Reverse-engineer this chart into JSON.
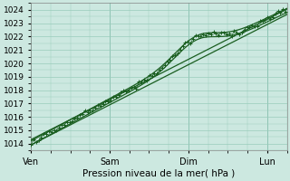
{
  "title": "Pression niveau de la mer( hPa )",
  "ylim": [
    1013.5,
    1024.5
  ],
  "xlim": [
    0,
    78
  ],
  "yticks": [
    1014,
    1015,
    1016,
    1017,
    1018,
    1019,
    1020,
    1021,
    1022,
    1023,
    1024
  ],
  "xtick_positions": [
    0,
    24,
    48,
    72
  ],
  "xtick_labels": [
    "Ven",
    "Sam",
    "Dim",
    "Lun"
  ],
  "bg_color": "#cce8e0",
  "line_color": "#1a5e20",
  "grid_color": "#99ccbb",
  "figsize": [
    3.2,
    2.0
  ],
  "dpi": 100
}
